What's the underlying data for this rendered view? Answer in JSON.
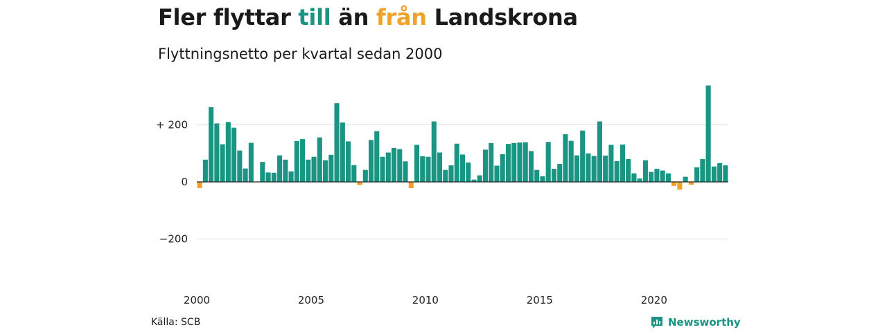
{
  "title": {
    "part1": "Fler flyttar ",
    "part2": "till",
    "part3": " än ",
    "part4": "från",
    "part5": " Landskrona"
  },
  "subtitle": "Flyttningsnetto per kvartal sedan 2000",
  "source": "Källa: SCB",
  "brand": "Newsworthy",
  "colors": {
    "positive": "#1a9584",
    "negative": "#f0a32a",
    "grid": "#dddddd",
    "zero_line": "#222222"
  },
  "chart_data": {
    "type": "bar",
    "title": "Fler flyttar till än från Landskrona",
    "subtitle": "Flyttningsnetto per kvartal sedan 2000",
    "xlabel": "",
    "ylabel": "",
    "x_start": "2000 Q1",
    "x_ticks": [
      "2000",
      "2005",
      "2010",
      "2015",
      "2020"
    ],
    "y_ticks": [
      {
        "value": 200,
        "label": "+ 200"
      },
      {
        "value": 0,
        "label": "0"
      },
      {
        "value": -200,
        "label": "−200"
      }
    ],
    "ylim": [
      -300,
      340
    ],
    "grid": true,
    "values": [
      -22,
      78,
      262,
      205,
      132,
      210,
      190,
      110,
      47,
      137,
      0,
      70,
      33,
      32,
      93,
      78,
      37,
      143,
      150,
      78,
      88,
      156,
      76,
      95,
      276,
      208,
      142,
      59,
      -11,
      42,
      147,
      178,
      88,
      103,
      119,
      115,
      72,
      -22,
      130,
      90,
      88,
      212,
      103,
      42,
      58,
      134,
      96,
      68,
      8,
      23,
      113,
      136,
      57,
      97,
      133,
      136,
      138,
      139,
      108,
      42,
      20,
      140,
      46,
      63,
      167,
      144,
      93,
      180,
      100,
      91,
      212,
      92,
      130,
      73,
      131,
      80,
      30,
      12,
      76,
      35,
      46,
      40,
      30,
      -14,
      -27,
      18,
      -10,
      51,
      80,
      338,
      54,
      66,
      58
    ]
  }
}
